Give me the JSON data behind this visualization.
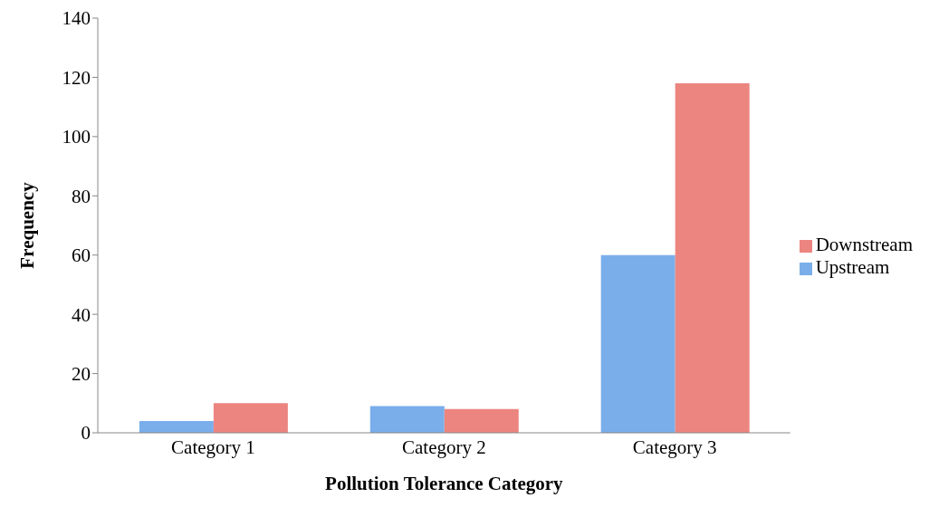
{
  "chart_data": {
    "type": "bar",
    "xlabel": "Pollution Tolerance Category",
    "ylabel": "Frequency",
    "categories": [
      "Category 1",
      "Category 2",
      "Category 3"
    ],
    "series": [
      {
        "name": "Upstream",
        "color": "#7aaeea",
        "values": [
          4,
          9,
          60
        ]
      },
      {
        "name": "Downstream",
        "color": "#ec8580",
        "values": [
          10,
          8,
          118
        ]
      }
    ],
    "ylim": [
      0,
      140
    ],
    "yticks": [
      0,
      20,
      40,
      60,
      80,
      100,
      120,
      140
    ],
    "grid": false,
    "legend": "right"
  }
}
